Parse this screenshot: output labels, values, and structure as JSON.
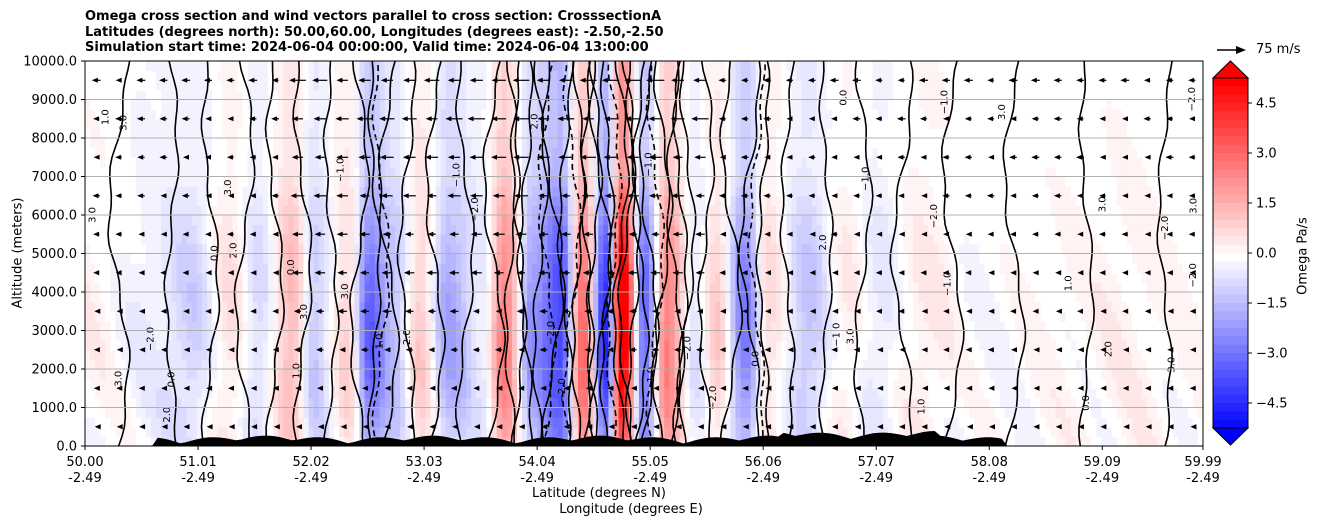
{
  "chart_data": {
    "type": "heatmap",
    "title_lines": [
      "Omega cross section and wind vectors parallel to cross section: CrosssectionA",
      "Latitudes (degrees north): 50.00,60.00, Longitudes (degrees east): -2.50,-2.50",
      "Simulation start time: 2024-06-04 00:00:00, Valid time: 2024-06-04 13:00:00"
    ],
    "ylabel": "Altitude (meters)",
    "xlabel_line1": "Latitude (degrees N)",
    "xlabel_line2": "Longitude (degrees E)",
    "x_range": [
      50.0,
      59.99
    ],
    "y_range": [
      0,
      10000
    ],
    "x_ticks": [
      {
        "lat": "50.00",
        "lon": "-2.49",
        "value": 50.0
      },
      {
        "lat": "51.01",
        "lon": "-2.49",
        "value": 51.01
      },
      {
        "lat": "52.02",
        "lon": "-2.49",
        "value": 52.02
      },
      {
        "lat": "53.03",
        "lon": "-2.49",
        "value": 53.03
      },
      {
        "lat": "54.04",
        "lon": "-2.49",
        "value": 54.04
      },
      {
        "lat": "55.05",
        "lon": "-2.49",
        "value": 55.05
      },
      {
        "lat": "56.06",
        "lon": "-2.49",
        "value": 56.06
      },
      {
        "lat": "57.07",
        "lon": "-2.49",
        "value": 57.07
      },
      {
        "lat": "58.08",
        "lon": "-2.49",
        "value": 58.08
      },
      {
        "lat": "59.09",
        "lon": "-2.49",
        "value": 59.09
      },
      {
        "lat": "59.99",
        "lon": "-2.49",
        "value": 59.99
      }
    ],
    "y_ticks": [
      "0.0",
      "1000.0",
      "2000.0",
      "3000.0",
      "4000.0",
      "5000.0",
      "6000.0",
      "7000.0",
      "8000.0",
      "9000.0",
      "10000.0"
    ],
    "grid": true,
    "colorbar": {
      "label": "Omega Pa/s",
      "range": [
        -5.25,
        5.25
      ],
      "ticks": [
        "4.5",
        "3.0",
        "1.5",
        "0.0",
        "−1.5",
        "−3.0",
        "−4.5"
      ],
      "colormap": "bwr"
    },
    "quiver_key": "75 m/s",
    "omega_bands": [
      {
        "lat": 50.0,
        "value": 0.2
      },
      {
        "lat": 50.6,
        "value": -0.3
      },
      {
        "lat": 50.95,
        "value": -0.8
      },
      {
        "lat": 51.3,
        "value": 0.5
      },
      {
        "lat": 51.55,
        "value": -0.6
      },
      {
        "lat": 51.85,
        "value": 1.2
      },
      {
        "lat": 52.05,
        "value": -0.9
      },
      {
        "lat": 52.35,
        "value": 0.7
      },
      {
        "lat": 52.55,
        "value": -2.6
      },
      {
        "lat": 52.75,
        "value": -1.2
      },
      {
        "lat": 53.0,
        "value": 0.8
      },
      {
        "lat": 53.25,
        "value": -1.5
      },
      {
        "lat": 53.55,
        "value": -0.4
      },
      {
        "lat": 53.75,
        "value": 2.2
      },
      {
        "lat": 54.0,
        "value": -1.8
      },
      {
        "lat": 54.25,
        "value": -3.2
      },
      {
        "lat": 54.45,
        "value": 2.6
      },
      {
        "lat": 54.65,
        "value": -3.5
      },
      {
        "lat": 54.8,
        "value": 5.0
      },
      {
        "lat": 55.0,
        "value": -2.6
      },
      {
        "lat": 55.2,
        "value": 2.2
      },
      {
        "lat": 55.45,
        "value": -0.4
      },
      {
        "lat": 55.65,
        "value": 0.8
      },
      {
        "lat": 55.9,
        "value": -2.2
      },
      {
        "lat": 56.1,
        "value": 0.6
      },
      {
        "lat": 56.45,
        "value": -1.0
      },
      {
        "lat": 56.8,
        "value": 0.3
      },
      {
        "lat": 57.1,
        "value": -0.4
      },
      {
        "lat": 57.5,
        "value": 0.5
      },
      {
        "lat": 58.0,
        "value": -0.1
      },
      {
        "lat": 58.6,
        "value": 0.1
      },
      {
        "lat": 59.3,
        "value": 0.3
      },
      {
        "lat": 59.99,
        "value": 0.1
      }
    ],
    "contour_labels": [
      "0.0",
      "1.0",
      "−1.0",
      "2.0",
      "−2.0",
      "3.0"
    ]
  }
}
